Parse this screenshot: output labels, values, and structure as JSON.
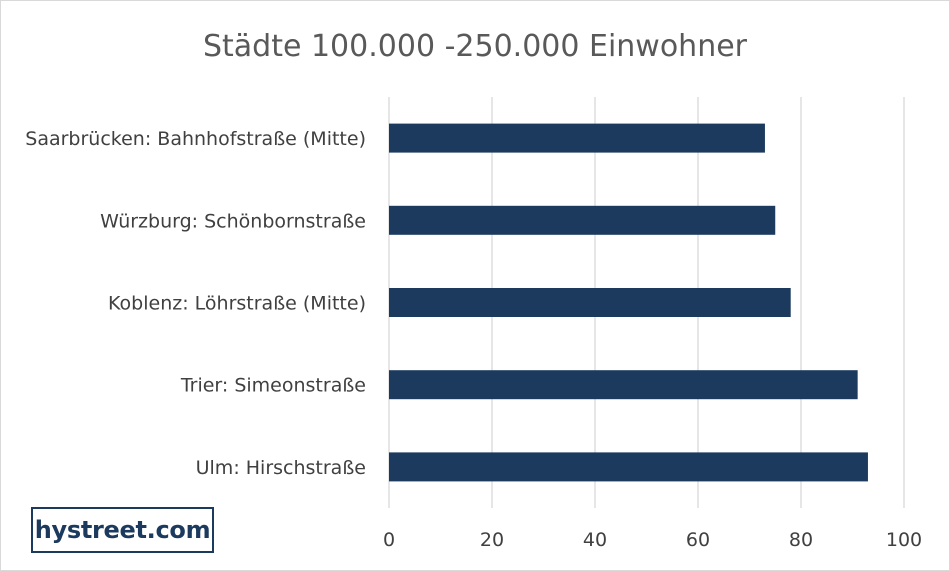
{
  "chart_data": {
    "type": "bar",
    "orientation": "horizontal",
    "title": "Städte 100.000 -250.000 Einwohner",
    "categories": [
      "Saarbrücken: Bahnhofstraße (Mitte)",
      "Würzburg: Schönbornstraße",
      "Koblenz: Löhrstraße (Mitte)",
      "Trier: Simeonstraße",
      "Ulm: Hirschstraße"
    ],
    "values": [
      73,
      75,
      78,
      91,
      93
    ],
    "xlim": [
      0,
      100
    ],
    "xticks": [
      "0",
      "20",
      "40",
      "60",
      "80",
      "100"
    ],
    "xlabel": "",
    "ylabel": "",
    "grid": "vertical",
    "bar_color": "#1b3a5e",
    "legend": "none"
  },
  "logo": {
    "text": "hystreet.com"
  }
}
